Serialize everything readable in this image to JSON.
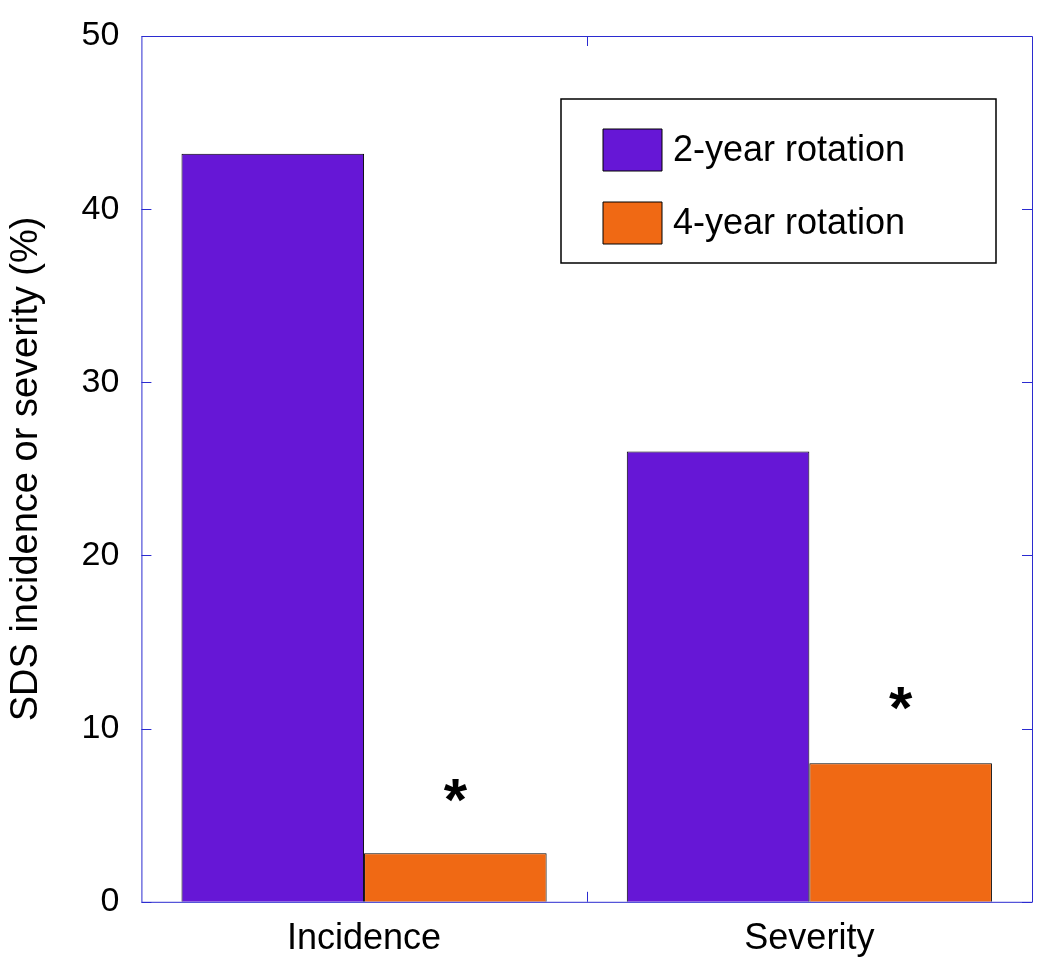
{
  "chart_data": {
    "type": "bar",
    "ylabel": "SDS incidence or severity (%)",
    "categories": [
      "Incidence",
      "Severity"
    ],
    "series": [
      {
        "name": "2-year rotation",
        "color": "#6617d6",
        "values": [
          43.2,
          26
        ]
      },
      {
        "name": "4-year rotation",
        "color": "#f06914",
        "values": [
          2.8,
          8
        ]
      }
    ],
    "ylim": [
      0,
      50
    ],
    "yticks": [
      0,
      10,
      20,
      30,
      40,
      50
    ],
    "grid": false,
    "legend": "top right",
    "annotations": [
      {
        "text": "*",
        "x": "Incidence",
        "y": 6.5
      },
      {
        "text": "*",
        "x": "Severity",
        "y": 11.8
      }
    ]
  }
}
